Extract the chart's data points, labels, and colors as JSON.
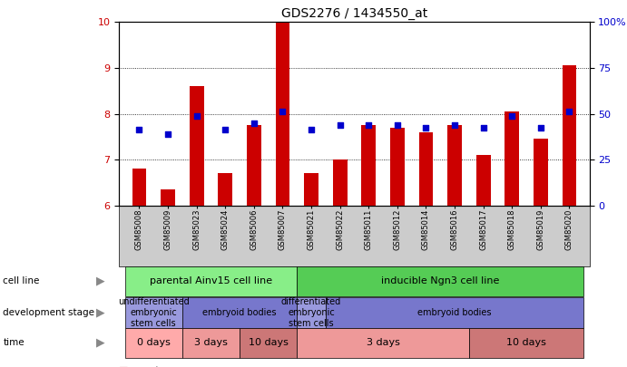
{
  "title": "GDS2276 / 1434550_at",
  "samples": [
    "GSM85008",
    "GSM85009",
    "GSM85023",
    "GSM85024",
    "GSM85006",
    "GSM85007",
    "GSM85021",
    "GSM85022",
    "GSM85011",
    "GSM85012",
    "GSM85014",
    "GSM85016",
    "GSM85017",
    "GSM85018",
    "GSM85019",
    "GSM85020"
  ],
  "bar_values": [
    6.8,
    6.35,
    8.6,
    6.7,
    7.75,
    10.0,
    6.7,
    7.0,
    7.75,
    7.7,
    7.6,
    7.75,
    7.1,
    8.05,
    7.45,
    9.05
  ],
  "dot_values": [
    7.65,
    7.55,
    7.95,
    7.65,
    7.8,
    8.05,
    7.65,
    7.75,
    7.75,
    7.75,
    7.7,
    7.75,
    7.7,
    7.95,
    7.7,
    8.05
  ],
  "bar_color": "#cc0000",
  "dot_color": "#0000cc",
  "ylim_left": [
    6,
    10
  ],
  "ylim_right": [
    0,
    100
  ],
  "yticks_left": [
    6,
    7,
    8,
    9,
    10
  ],
  "yticks_right": [
    0,
    25,
    50,
    75,
    100
  ],
  "ytick_labels_right": [
    "0",
    "25",
    "50",
    "75",
    "100%"
  ],
  "background_color": "#ffffff",
  "cell_line_row": {
    "label": "cell line",
    "groups": [
      {
        "text": "parental Ainv15 cell line",
        "start": 0,
        "end": 5,
        "color": "#88ee88"
      },
      {
        "text": "inducible Ngn3 cell line",
        "start": 6,
        "end": 15,
        "color": "#55cc55"
      }
    ]
  },
  "dev_stage_row": {
    "label": "development stage",
    "groups": [
      {
        "text": "undifferentiated\nembryonic\nstem cells",
        "start": 0,
        "end": 1,
        "color": "#9999dd"
      },
      {
        "text": "embryoid bodies",
        "start": 2,
        "end": 5,
        "color": "#7777cc"
      },
      {
        "text": "differentiated\nembryonic\nstem cells",
        "start": 6,
        "end": 6,
        "color": "#9999dd"
      },
      {
        "text": "embryoid bodies",
        "start": 7,
        "end": 15,
        "color": "#7777cc"
      }
    ]
  },
  "time_row": {
    "label": "time",
    "groups": [
      {
        "text": "0 days",
        "start": 0,
        "end": 1,
        "color": "#ffaaaa"
      },
      {
        "text": "3 days",
        "start": 2,
        "end": 3,
        "color": "#ee9999"
      },
      {
        "text": "10 days",
        "start": 4,
        "end": 5,
        "color": "#cc7777"
      },
      {
        "text": "3 days",
        "start": 6,
        "end": 11,
        "color": "#ee9999"
      },
      {
        "text": "10 days",
        "start": 12,
        "end": 15,
        "color": "#cc7777"
      }
    ]
  },
  "legend_count_color": "#cc0000",
  "legend_percentile_color": "#0000cc",
  "xtick_bg_color": "#cccccc"
}
